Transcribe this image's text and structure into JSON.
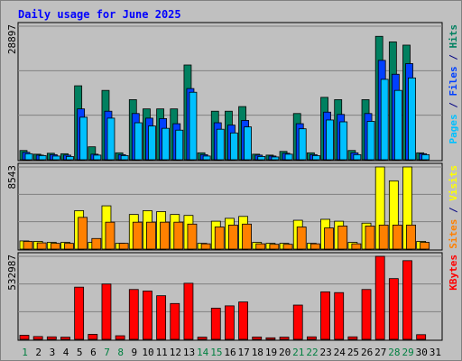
{
  "chart_data": {
    "type": "bar",
    "title": "Daily usage for June 2025",
    "days": [
      "1",
      "2",
      "3",
      "4",
      "5",
      "6",
      "7",
      "8",
      "9",
      "10",
      "11",
      "12",
      "13",
      "14",
      "15",
      "16",
      "17",
      "18",
      "19",
      "20",
      "21",
      "22",
      "23",
      "24",
      "25",
      "26",
      "27",
      "28",
      "29",
      "30",
      "31"
    ],
    "weekend_days": [
      1,
      7,
      8,
      14,
      15,
      21,
      22,
      28,
      29
    ],
    "panels": [
      {
        "id": "hits",
        "max_label": "28897",
        "ymax": 28897,
        "right_labels": [
          {
            "text": "Pages",
            "color": "#00c0ff"
          },
          {
            "text": " / ",
            "color": "#000080"
          },
          {
            "text": "Files",
            "color": "#0040ff"
          },
          {
            "text": " / ",
            "color": "#000080"
          },
          {
            "text": "Hits",
            "color": "#008060"
          }
        ],
        "series": [
          {
            "key": "hits",
            "color": "#008060",
            "values": [
              2000,
              1200,
              1400,
              1300,
              16000,
              2800,
              15000,
              1500,
              13000,
              11000,
              11000,
              11000,
              20500,
              1500,
              10500,
              10500,
              11500,
              1200,
              1000,
              1800,
              10000,
              1500,
              13500,
              13000,
              2000,
              13000,
              26700,
              25500,
              24800,
              1500,
              null
            ]
          },
          {
            "key": "files",
            "color": "#0040ff",
            "values": [
              1600,
              1000,
              1100,
              1000,
              11000,
              1200,
              10500,
              1100,
              10000,
              9000,
              8900,
              7800,
              15400,
              1100,
              8000,
              7500,
              8500,
              1000,
              800,
              1400,
              7800,
              1100,
              10300,
              9800,
              1500,
              10000,
              21500,
              18500,
              20800,
              1300,
              null
            ]
          },
          {
            "key": "pages",
            "color": "#00c0ff",
            "values": [
              1300,
              900,
              800,
              700,
              9200,
              1000,
              9000,
              900,
              8000,
              7300,
              6800,
              6400,
              14600,
              800,
              6600,
              5800,
              7100,
              700,
              600,
              1200,
              6700,
              900,
              8600,
              8200,
              1100,
              8300,
              17400,
              15000,
              17700,
              1100,
              null
            ]
          }
        ]
      },
      {
        "id": "visits",
        "max_label": "8543",
        "ymax": 8543,
        "right_labels": [
          {
            "text": "Sites",
            "color": "#ff8000"
          },
          {
            "text": " / ",
            "color": "#000080"
          },
          {
            "text": "Visits",
            "color": "#ffff00"
          }
        ],
        "series": [
          {
            "key": "visits",
            "color": "#ffff00",
            "values": [
              850,
              800,
              700,
              700,
              4000,
              700,
              4500,
              600,
              3600,
              4000,
              3900,
              3600,
              3500,
              600,
              2900,
              3200,
              3400,
              700,
              600,
              600,
              3000,
              600,
              3100,
              2900,
              700,
              2700,
              8543,
              7100,
              8543,
              800,
              null
            ]
          },
          {
            "key": "sites",
            "color": "#ff8000",
            "values": [
              800,
              650,
              600,
              600,
              3300,
              1100,
              2800,
              600,
              2800,
              2800,
              2800,
              2800,
              2600,
              550,
              2300,
              2500,
              2600,
              550,
              500,
              500,
              2300,
              550,
              2200,
              2400,
              550,
              2400,
              2500,
              2500,
              2500,
              700,
              null
            ]
          }
        ]
      },
      {
        "id": "kbytes",
        "max_label": "532987",
        "ymax": 532987,
        "right_labels": [
          {
            "text": "KBytes",
            "color": "#ff0000"
          }
        ],
        "series": [
          {
            "key": "kbytes",
            "color": "#ff0000",
            "values": [
              26000,
              18000,
              16000,
              14000,
              335000,
              32000,
              355000,
              23000,
              320000,
              310000,
              280000,
              230000,
              360000,
              14000,
              200000,
              215000,
              240000,
              15000,
              10000,
              14000,
              220000,
              16000,
              305000,
              300000,
              16000,
              320000,
              532987,
              390000,
              505000,
              30000,
              null
            ]
          }
        ]
      }
    ],
    "grid": true,
    "legend": "right-vertical"
  }
}
